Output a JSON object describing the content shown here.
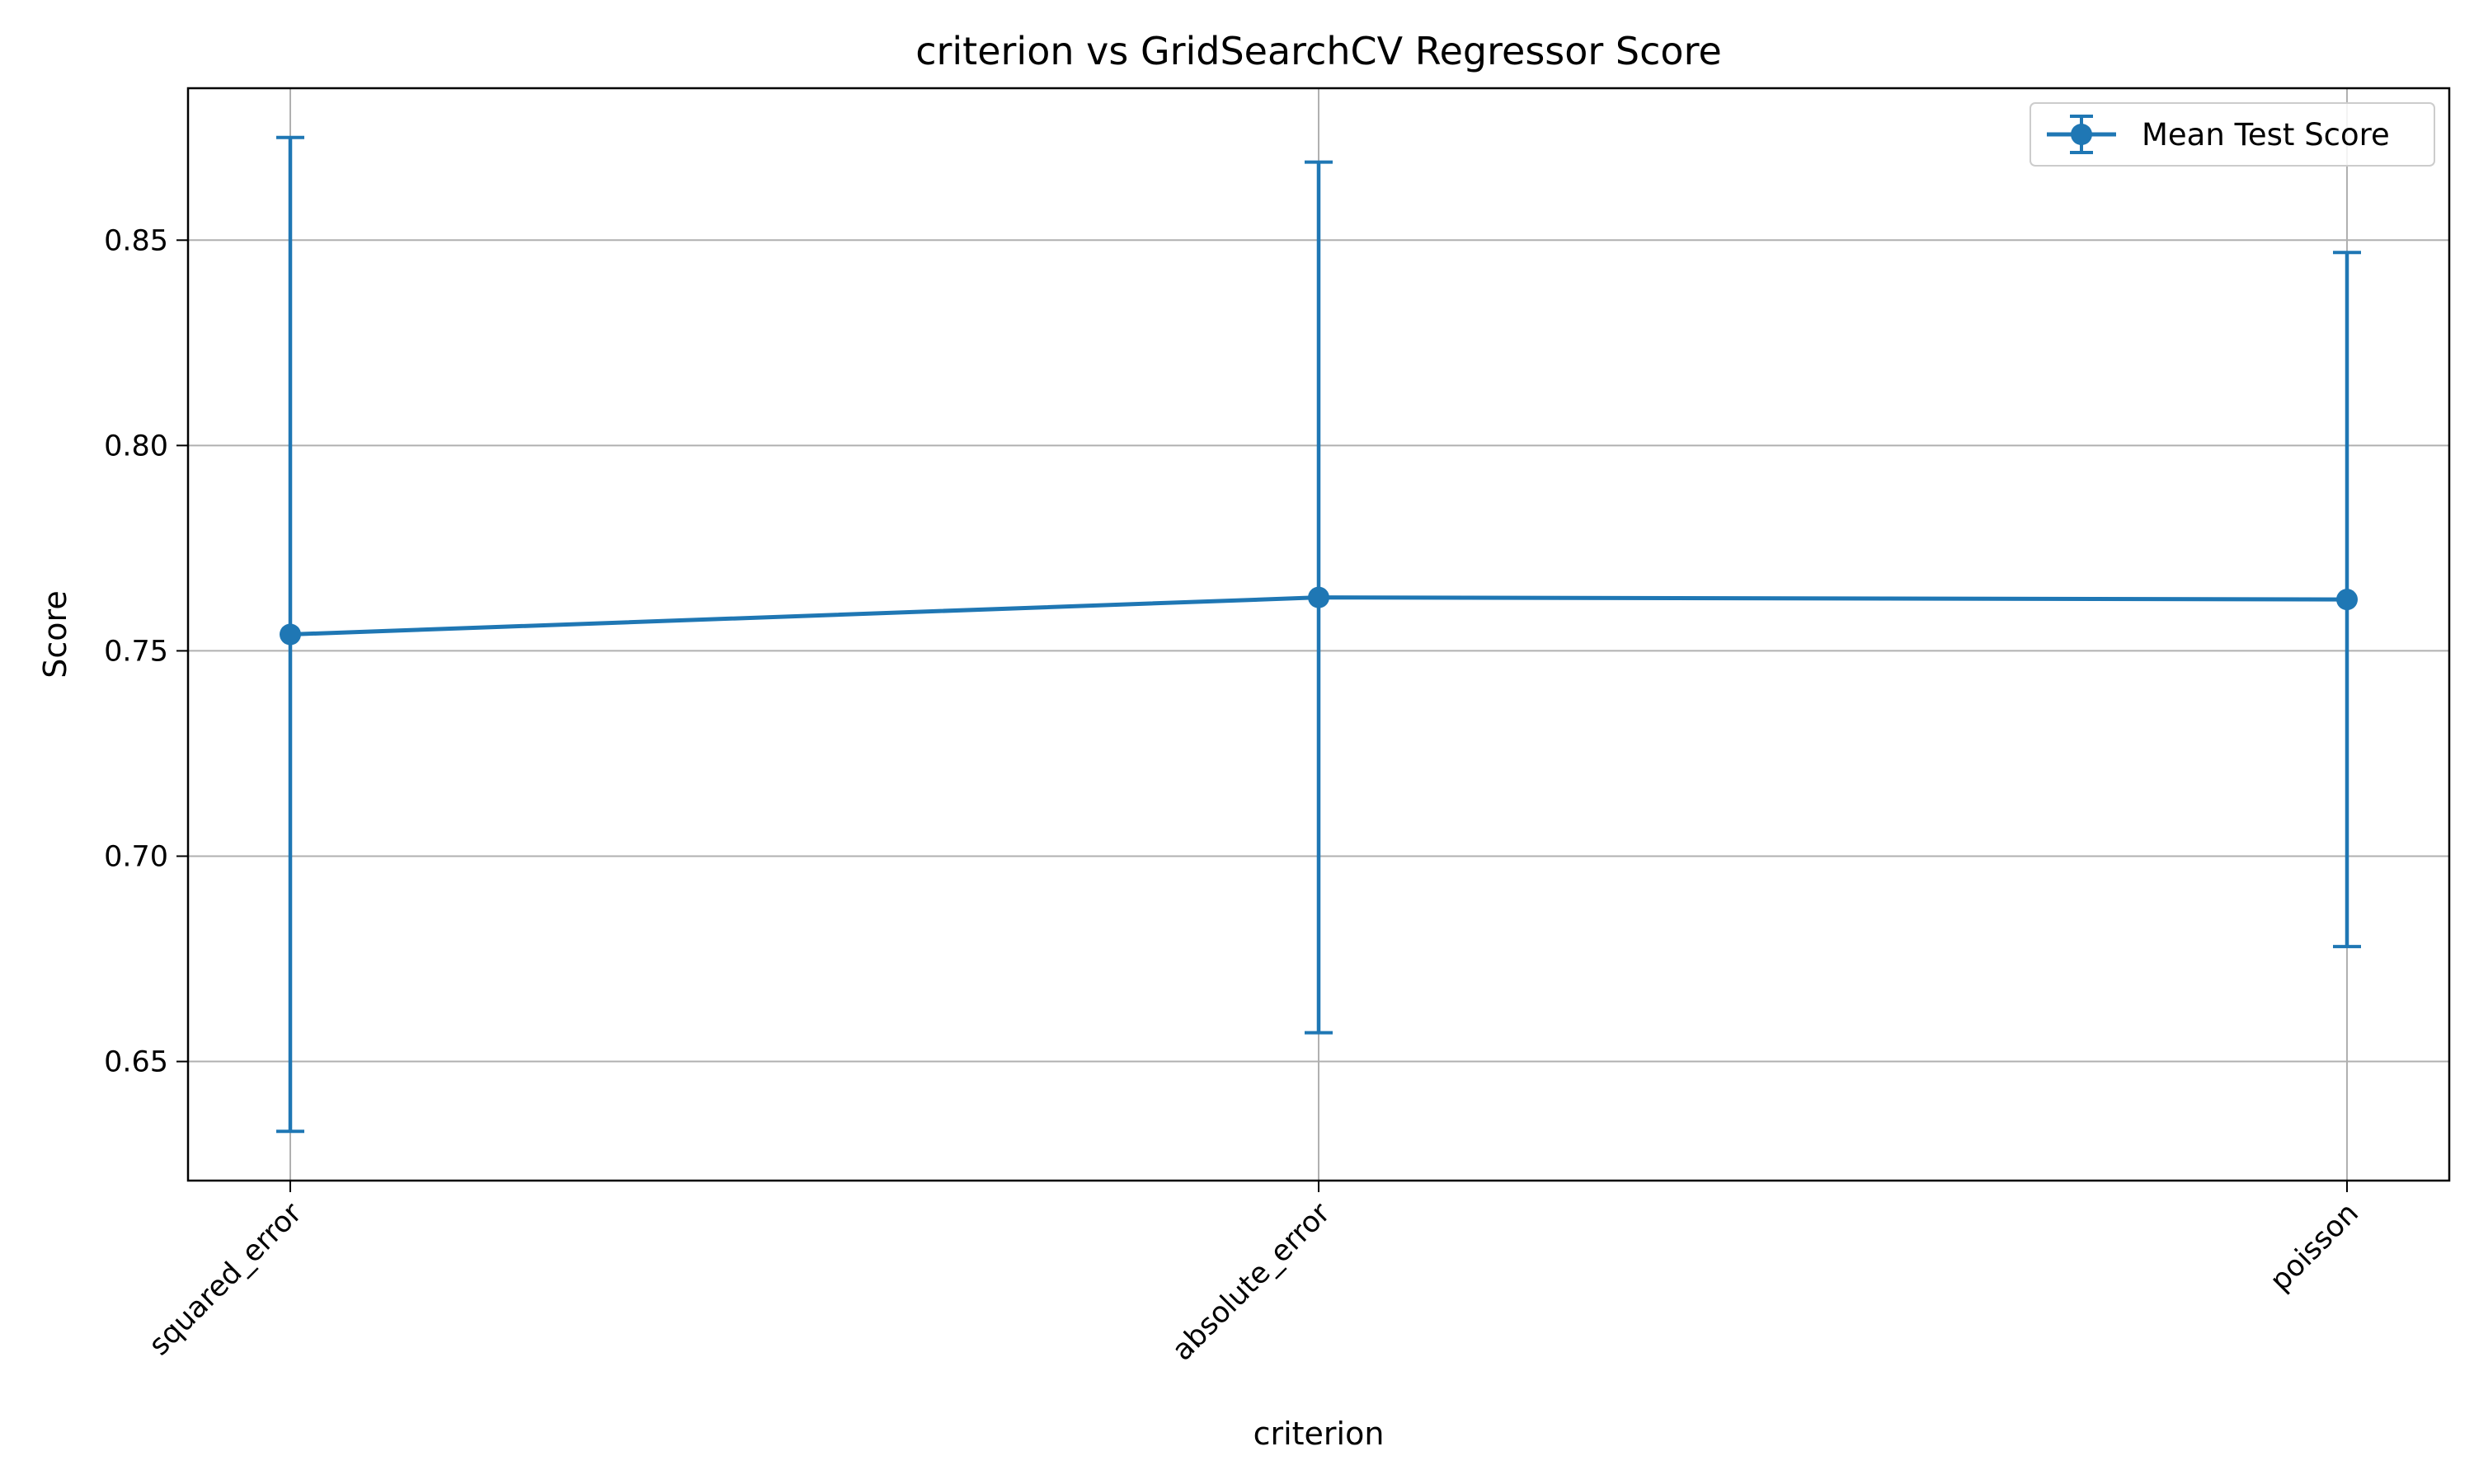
{
  "chart_data": {
    "type": "line",
    "title": "criterion vs GridSearchCV Regressor Score",
    "xlabel": "criterion",
    "ylabel": "Score",
    "categories": [
      "squared_error",
      "absolute_error",
      "poisson"
    ],
    "series": [
      {
        "name": "Mean Test Score",
        "values": [
          0.754,
          0.763,
          0.7625
        ],
        "error_low": [
          0.633,
          0.657,
          0.678
        ],
        "error_high": [
          0.875,
          0.869,
          0.847
        ]
      }
    ],
    "ylim": [
      0.621,
      0.887
    ],
    "yticks": [
      0.65,
      0.7,
      0.75,
      0.8,
      0.85
    ],
    "ytick_labels": [
      "0.65",
      "0.70",
      "0.75",
      "0.80",
      "0.85"
    ],
    "grid": true,
    "legend_position": "top-right",
    "color": "#1f77b4"
  }
}
